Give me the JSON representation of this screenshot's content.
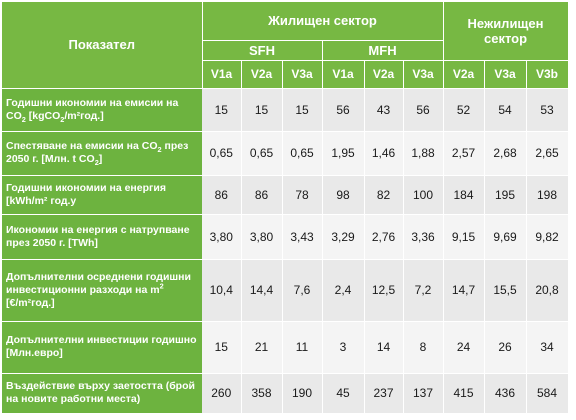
{
  "header": {
    "indicator": "Показател",
    "residential": "Жилищен сектор",
    "non_residential_line1": "Нежилищен",
    "non_residential_line2": "сектор",
    "sfh": "SFH",
    "mfh": "MFH",
    "variants": [
      "V1a",
      "V2a",
      "V3a",
      "V1a",
      "V2a",
      "V3a",
      "V2a",
      "V3a",
      "V3b"
    ]
  },
  "rows": [
    {
      "label": {
        "a": "Годишни икономии на емисии на CO",
        "b": "2",
        "c": " [kgCO",
        "d": "2",
        "e": "/m²год.]"
      },
      "values": [
        "15",
        "15",
        "15",
        "56",
        "43",
        "56",
        "52",
        "54",
        "53"
      ]
    },
    {
      "label": {
        "a": "Спестяване на емисии на CO",
        "b": "2",
        "c": " през 2050 г. [Млн. t CO",
        "d": "2",
        "e": "]"
      },
      "values": [
        "0,65",
        "0,65",
        "0,65",
        "1,95",
        "1,46",
        "1,88",
        "2,57",
        "2,68",
        "2,65"
      ]
    },
    {
      "label": {
        "text": "Годишни икономии на енергия [kWh/m² год.у"
      },
      "values": [
        "86",
        "86",
        "78",
        "98",
        "82",
        "100",
        "184",
        "195",
        "198"
      ]
    },
    {
      "label": {
        "text": "Икономии на енергия с натрупване през 2050 г. [TWh]"
      },
      "values": [
        "3,80",
        "3,80",
        "3,43",
        "3,29",
        "2,76",
        "3,36",
        "9,15",
        "9,69",
        "9,82"
      ]
    },
    {
      "label": {
        "line1": "Допълнителни осреднени годишни  инвестиционни разходи на",
        "m": "m",
        "sup": "2",
        "line2": "[€/m²год.]"
      },
      "values": [
        "10,4",
        "14,4",
        "7,6",
        "2,4",
        "12,5",
        "7,2",
        "14,7",
        "15,5",
        "20,8"
      ]
    },
    {
      "label": {
        "line1": "Допълнителни инвестиции годишно",
        "line2": "[Млн.евро]"
      },
      "values": [
        "15",
        "21",
        "11",
        "3",
        "14",
        "8",
        "24",
        "26",
        "34"
      ]
    },
    {
      "label": {
        "text": "Въздействие върху заетостта (брой на новите работни места)"
      },
      "values": [
        "260",
        "358",
        "190",
        "45",
        "237",
        "137",
        "415",
        "436",
        "584"
      ]
    }
  ]
}
